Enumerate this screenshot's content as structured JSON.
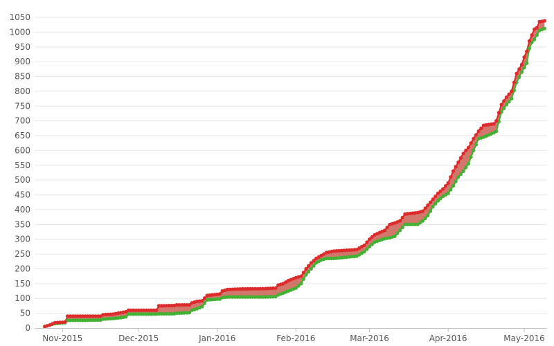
{
  "chart_data": {
    "type": "area",
    "title": "",
    "xlabel": "",
    "ylabel": "",
    "ylim": [
      0,
      1050
    ],
    "yticks": [
      0,
      50,
      100,
      150,
      200,
      250,
      300,
      350,
      400,
      450,
      500,
      550,
      600,
      650,
      700,
      750,
      800,
      850,
      900,
      950,
      1000,
      1050
    ],
    "xlim": [
      "2015-10-21",
      "2016-05-10"
    ],
    "xticks": [
      {
        "date": "2015-11-01",
        "label": "Nov-2015"
      },
      {
        "date": "2015-12-01",
        "label": "Dec-2015"
      },
      {
        "date": "2016-01-01",
        "label": "Jan-2016"
      },
      {
        "date": "2016-02-01",
        "label": "Feb-2016"
      },
      {
        "date": "2016-03-01",
        "label": "Mar-2016"
      },
      {
        "date": "2016-04-01",
        "label": "Apr-2016"
      },
      {
        "date": "2016-05-01",
        "label": "May-2016"
      }
    ],
    "grid": true,
    "legend": "none",
    "band_color": "#c44a3c",
    "series": [
      {
        "color": "#dd2a2a",
        "points": [
          [
            "2015-10-25",
            5
          ],
          [
            "2015-10-27",
            10
          ],
          [
            "2015-10-29",
            18
          ],
          [
            "2015-11-02",
            20
          ],
          [
            "2015-11-03",
            40
          ],
          [
            "2015-11-10",
            40
          ],
          [
            "2015-11-16",
            40
          ],
          [
            "2015-11-17",
            45
          ],
          [
            "2015-11-21",
            47
          ],
          [
            "2015-11-24",
            52
          ],
          [
            "2015-11-26",
            55
          ],
          [
            "2015-11-27",
            60
          ],
          [
            "2015-12-03",
            60
          ],
          [
            "2015-12-08",
            60
          ],
          [
            "2015-12-09",
            75
          ],
          [
            "2015-12-15",
            76
          ],
          [
            "2015-12-16",
            78
          ],
          [
            "2015-12-21",
            78
          ],
          [
            "2015-12-22",
            85
          ],
          [
            "2015-12-24",
            90
          ],
          [
            "2015-12-26",
            92
          ],
          [
            "2015-12-28",
            110
          ],
          [
            "2016-01-02",
            115
          ],
          [
            "2016-01-03",
            125
          ],
          [
            "2016-01-05",
            130
          ],
          [
            "2016-01-10",
            132
          ],
          [
            "2016-01-20",
            133
          ],
          [
            "2016-01-24",
            135
          ],
          [
            "2016-01-25",
            145
          ],
          [
            "2016-01-27",
            150
          ],
          [
            "2016-01-29",
            160
          ],
          [
            "2016-02-01",
            170
          ],
          [
            "2016-02-03",
            175
          ],
          [
            "2016-02-05",
            200
          ],
          [
            "2016-02-07",
            220
          ],
          [
            "2016-02-09",
            235
          ],
          [
            "2016-02-11",
            245
          ],
          [
            "2016-02-13",
            255
          ],
          [
            "2016-02-16",
            260
          ],
          [
            "2016-02-25",
            265
          ],
          [
            "2016-02-28",
            280
          ],
          [
            "2016-03-01",
            300
          ],
          [
            "2016-03-03",
            315
          ],
          [
            "2016-03-07",
            330
          ],
          [
            "2016-03-09",
            350
          ],
          [
            "2016-03-11",
            355
          ],
          [
            "2016-03-13",
            362
          ],
          [
            "2016-03-15",
            385
          ],
          [
            "2016-03-20",
            390
          ],
          [
            "2016-03-22",
            395
          ],
          [
            "2016-03-24",
            415
          ],
          [
            "2016-03-26",
            435
          ],
          [
            "2016-03-28",
            455
          ],
          [
            "2016-03-30",
            470
          ],
          [
            "2016-04-01",
            490
          ],
          [
            "2016-04-03",
            530
          ],
          [
            "2016-04-05",
            560
          ],
          [
            "2016-04-07",
            590
          ],
          [
            "2016-04-09",
            610
          ],
          [
            "2016-04-11",
            640
          ],
          [
            "2016-04-13",
            665
          ],
          [
            "2016-04-15",
            685
          ],
          [
            "2016-04-19",
            690
          ],
          [
            "2016-04-20",
            700
          ],
          [
            "2016-04-22",
            755
          ],
          [
            "2016-04-24",
            780
          ],
          [
            "2016-04-26",
            800
          ],
          [
            "2016-04-28",
            860
          ],
          [
            "2016-04-30",
            890
          ],
          [
            "2016-05-01",
            915
          ],
          [
            "2016-05-02",
            935
          ],
          [
            "2016-05-03",
            970
          ],
          [
            "2016-05-04",
            990
          ],
          [
            "2016-05-05",
            1010
          ],
          [
            "2016-05-06",
            1015
          ],
          [
            "2016-05-07",
            1035
          ],
          [
            "2016-05-09",
            1038
          ]
        ]
      },
      {
        "color": "#43b133",
        "points": [
          [
            "2015-10-25",
            5
          ],
          [
            "2015-10-27",
            10
          ],
          [
            "2015-10-29",
            15
          ],
          [
            "2015-11-02",
            18
          ],
          [
            "2015-11-03",
            26
          ],
          [
            "2015-11-10",
            26
          ],
          [
            "2015-11-16",
            27
          ],
          [
            "2015-11-17",
            30
          ],
          [
            "2015-11-21",
            32
          ],
          [
            "2015-11-24",
            35
          ],
          [
            "2015-11-26",
            38
          ],
          [
            "2015-11-27",
            47
          ],
          [
            "2015-12-03",
            47
          ],
          [
            "2015-12-08",
            47
          ],
          [
            "2015-12-09",
            48
          ],
          [
            "2015-12-15",
            48
          ],
          [
            "2015-12-16",
            50
          ],
          [
            "2015-12-21",
            52
          ],
          [
            "2015-12-22",
            60
          ],
          [
            "2015-12-24",
            65
          ],
          [
            "2015-12-26",
            72
          ],
          [
            "2015-12-28",
            95
          ],
          [
            "2016-01-02",
            98
          ],
          [
            "2016-01-03",
            103
          ],
          [
            "2016-01-05",
            105
          ],
          [
            "2016-01-10",
            105
          ],
          [
            "2016-01-20",
            105
          ],
          [
            "2016-01-24",
            106
          ],
          [
            "2016-01-25",
            112
          ],
          [
            "2016-01-27",
            118
          ],
          [
            "2016-01-29",
            125
          ],
          [
            "2016-02-01",
            135
          ],
          [
            "2016-02-03",
            150
          ],
          [
            "2016-02-05",
            180
          ],
          [
            "2016-02-07",
            200
          ],
          [
            "2016-02-09",
            220
          ],
          [
            "2016-02-11",
            230
          ],
          [
            "2016-02-13",
            235
          ],
          [
            "2016-02-16",
            235
          ],
          [
            "2016-02-25",
            243
          ],
          [
            "2016-02-28",
            258
          ],
          [
            "2016-03-01",
            275
          ],
          [
            "2016-03-03",
            290
          ],
          [
            "2016-03-07",
            302
          ],
          [
            "2016-03-09",
            305
          ],
          [
            "2016-03-11",
            310
          ],
          [
            "2016-03-13",
            330
          ],
          [
            "2016-03-15",
            350
          ],
          [
            "2016-03-20",
            350
          ],
          [
            "2016-03-22",
            362
          ],
          [
            "2016-03-24",
            380
          ],
          [
            "2016-03-26",
            410
          ],
          [
            "2016-03-28",
            430
          ],
          [
            "2016-03-30",
            445
          ],
          [
            "2016-04-01",
            455
          ],
          [
            "2016-04-03",
            480
          ],
          [
            "2016-04-05",
            510
          ],
          [
            "2016-04-07",
            530
          ],
          [
            "2016-04-09",
            555
          ],
          [
            "2016-04-11",
            600
          ],
          [
            "2016-04-13",
            640
          ],
          [
            "2016-04-15",
            645
          ],
          [
            "2016-04-19",
            660
          ],
          [
            "2016-04-20",
            665
          ],
          [
            "2016-04-22",
            730
          ],
          [
            "2016-04-24",
            755
          ],
          [
            "2016-04-26",
            775
          ],
          [
            "2016-04-28",
            830
          ],
          [
            "2016-04-30",
            865
          ],
          [
            "2016-05-01",
            880
          ],
          [
            "2016-05-02",
            895
          ],
          [
            "2016-05-03",
            945
          ],
          [
            "2016-05-04",
            965
          ],
          [
            "2016-05-05",
            975
          ],
          [
            "2016-05-06",
            990
          ],
          [
            "2016-05-07",
            1005
          ],
          [
            "2016-05-09",
            1012
          ]
        ]
      }
    ]
  }
}
